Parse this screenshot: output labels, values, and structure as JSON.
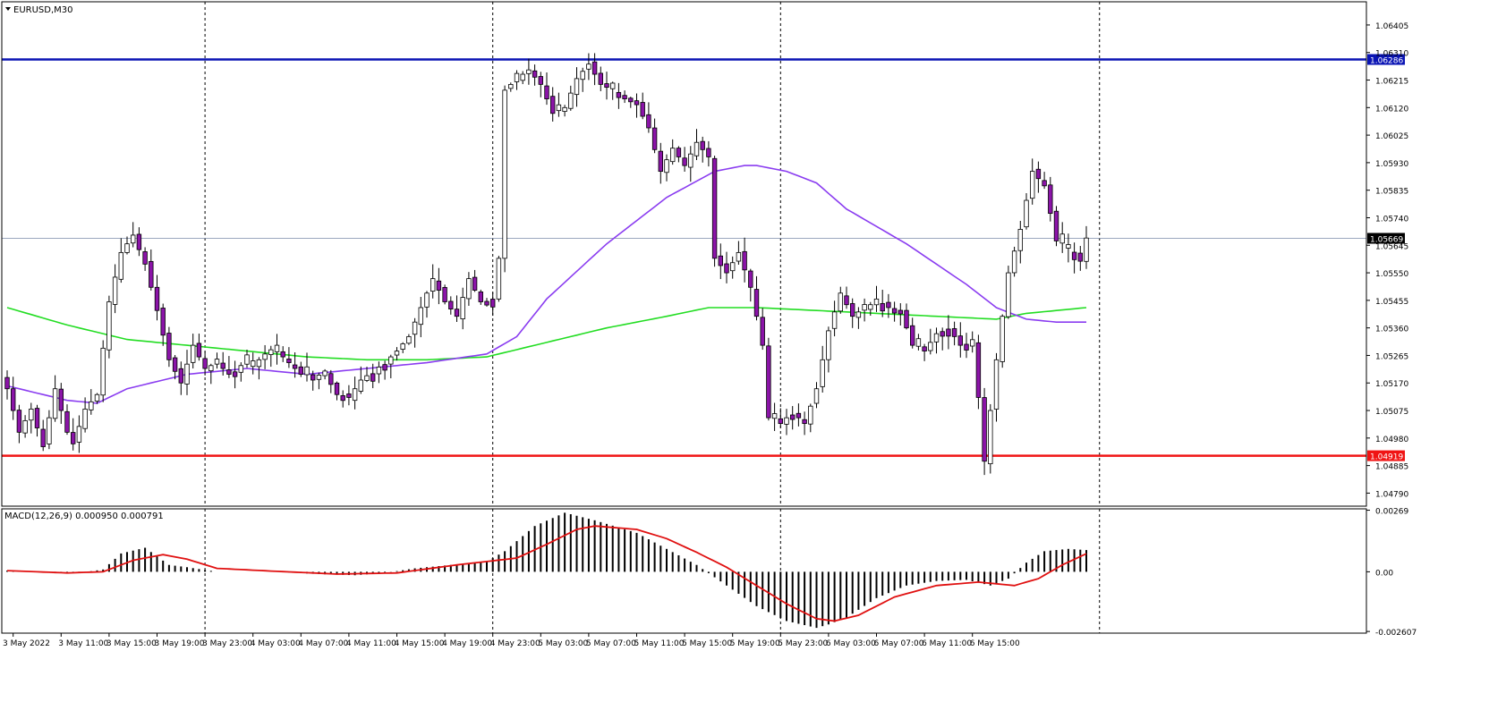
{
  "window": {
    "symbol_label": "EURUSD,M30",
    "indicator_label": "MACD(12,26,9) 0.000950 0.000791"
  },
  "colors": {
    "background": "#ffffff",
    "bull_body": "#ffffff",
    "bear_body": "#8b14a8",
    "wick": "#000000",
    "ma_fast": "#8a3cf0",
    "ma_slow": "#22dd22",
    "resistance_line": "#0a14b4",
    "support_line": "#f01414",
    "current_price_line": "#7a8aa8",
    "macd_hist": "#000000",
    "macd_signal": "#e01010"
  },
  "chart_data": [
    {
      "type": "candlestick",
      "symbol": "EURUSD",
      "timeframe": "M30",
      "y_range": [
        1.04745,
        1.06485
      ],
      "y_ticks": [
        "1.06405",
        "1.06310",
        "1.06215",
        "1.06120",
        "1.06025",
        "1.05930",
        "1.05835",
        "1.05740",
        "1.05645",
        "1.05550",
        "1.05455",
        "1.05360",
        "1.05265",
        "1.05170",
        "1.05075",
        "1.04980",
        "1.04885",
        "1.04790"
      ],
      "x_ticks": [
        "3 May 2022",
        "3 May 11:00",
        "3 May 15:00",
        "3 May 19:00",
        "3 May 23:00",
        "4 May 03:00",
        "4 May 07:00",
        "4 May 11:00",
        "4 May 15:00",
        "4 May 19:00",
        "4 May 23:00",
        "5 May 03:00",
        "5 May 07:00",
        "5 May 11:00",
        "5 May 15:00",
        "5 May 19:00",
        "5 May 23:00",
        "6 May 03:00",
        "6 May 07:00",
        "6 May 11:00",
        "6 May 15:00"
      ],
      "period_separators": [
        "3 May 23:00",
        "4 May 23:00",
        "5 May 23:00"
      ],
      "horizontal_levels": [
        {
          "label": "1.06286",
          "value": 1.06286,
          "color": "#0a14b4"
        },
        {
          "label": "1.04919",
          "value": 1.04919,
          "color": "#f01414"
        }
      ],
      "current_price": {
        "label": "1.05669",
        "value": 1.05669
      },
      "anchors": [
        [
          0,
          1.0515
        ],
        [
          2,
          1.05
        ],
        [
          4,
          1.0508
        ],
        [
          6,
          1.0495
        ],
        [
          8,
          1.0515
        ],
        [
          10,
          1.05
        ],
        [
          11,
          1.0496
        ],
        [
          13,
          1.0508
        ],
        [
          15,
          1.0513
        ],
        [
          17,
          1.0545
        ],
        [
          19,
          1.0562
        ],
        [
          21,
          1.0568
        ],
        [
          23,
          1.0558
        ],
        [
          25,
          1.0542
        ],
        [
          27,
          1.0525
        ],
        [
          29,
          1.0517
        ],
        [
          31,
          1.053
        ],
        [
          33,
          1.0522
        ],
        [
          35,
          1.0524
        ],
        [
          37,
          1.052
        ],
        [
          39,
          1.0523
        ],
        [
          41,
          1.0523
        ],
        [
          43,
          1.0527
        ],
        [
          45,
          1.0528
        ],
        [
          47,
          1.0524
        ],
        [
          49,
          1.052
        ],
        [
          51,
          1.0518
        ],
        [
          53,
          1.052
        ],
        [
          55,
          1.0513
        ],
        [
          57,
          1.0512
        ],
        [
          59,
          1.0518
        ],
        [
          61,
          1.0521
        ],
        [
          63,
          1.0524
        ],
        [
          65,
          1.0528
        ],
        [
          67,
          1.0533
        ],
        [
          69,
          1.0543
        ],
        [
          71,
          1.0553
        ],
        [
          73,
          1.0545
        ],
        [
          75,
          1.054
        ],
        [
          77,
          1.0553
        ],
        [
          79,
          1.0545
        ],
        [
          81,
          1.0545
        ],
        [
          82,
          1.056
        ],
        [
          83,
          1.0618
        ],
        [
          85,
          1.0622
        ],
        [
          87,
          1.0625
        ],
        [
          89,
          1.062
        ],
        [
          91,
          1.061
        ],
        [
          93,
          1.0612
        ],
        [
          95,
          1.0622
        ],
        [
          97,
          1.0627
        ],
        [
          99,
          1.062
        ],
        [
          101,
          1.0618
        ],
        [
          103,
          1.0615
        ],
        [
          105,
          1.0613
        ],
        [
          107,
          1.0605
        ],
        [
          109,
          1.059
        ],
        [
          111,
          1.0598
        ],
        [
          113,
          1.0592
        ],
        [
          115,
          1.06
        ],
        [
          117,
          1.0595
        ],
        [
          118,
          1.056
        ],
        [
          120,
          1.0555
        ],
        [
          122,
          1.0562
        ],
        [
          124,
          1.055
        ],
        [
          126,
          1.053
        ],
        [
          127,
          1.0505
        ],
        [
          129,
          1.0503
        ],
        [
          131,
          1.0507
        ],
        [
          133,
          1.0503
        ],
        [
          135,
          1.0515
        ],
        [
          137,
          1.0535
        ],
        [
          139,
          1.0548
        ],
        [
          141,
          1.054
        ],
        [
          143,
          1.0543
        ],
        [
          145,
          1.0545
        ],
        [
          147,
          1.0543
        ],
        [
          149,
          1.0542
        ],
        [
          151,
          1.053
        ],
        [
          153,
          1.0528
        ],
        [
          155,
          1.0534
        ],
        [
          157,
          1.0536
        ],
        [
          159,
          1.053
        ],
        [
          161,
          1.053
        ],
        [
          162,
          1.0512
        ],
        [
          163,
          1.049
        ],
        [
          165,
          1.0525
        ],
        [
          167,
          1.0555
        ],
        [
          169,
          1.057
        ],
        [
          171,
          1.059
        ],
        [
          173,
          1.0585
        ],
        [
          175,
          1.0566
        ],
        [
          177,
          1.0563
        ],
        [
          179,
          1.0559
        ],
        [
          180,
          1.0567
        ]
      ],
      "ma_slow": [
        [
          0,
          1.0543
        ],
        [
          10,
          1.0537
        ],
        [
          20,
          1.0532
        ],
        [
          30,
          1.053
        ],
        [
          40,
          1.0528
        ],
        [
          50,
          1.0526
        ],
        [
          60,
          1.0525
        ],
        [
          70,
          1.0525
        ],
        [
          80,
          1.0526
        ],
        [
          90,
          1.0531
        ],
        [
          100,
          1.0536
        ],
        [
          110,
          1.054
        ],
        [
          117,
          1.0543
        ],
        [
          125,
          1.0543
        ],
        [
          135,
          1.0542
        ],
        [
          145,
          1.0541
        ],
        [
          155,
          1.054
        ],
        [
          165,
          1.0539
        ],
        [
          170,
          1.0541
        ],
        [
          180,
          1.0543
        ]
      ],
      "ma_fast": [
        [
          0,
          1.0516
        ],
        [
          10,
          1.0511
        ],
        [
          15,
          1.051
        ],
        [
          20,
          1.0515
        ],
        [
          30,
          1.052
        ],
        [
          40,
          1.0522
        ],
        [
          50,
          1.052
        ],
        [
          60,
          1.0522
        ],
        [
          70,
          1.0524
        ],
        [
          80,
          1.0527
        ],
        [
          85,
          1.0533
        ],
        [
          90,
          1.0546
        ],
        [
          100,
          1.0565
        ],
        [
          110,
          1.0581
        ],
        [
          118,
          1.059
        ],
        [
          123,
          1.0592
        ],
        [
          125,
          1.0592
        ],
        [
          130,
          1.059
        ],
        [
          135,
          1.0586
        ],
        [
          140,
          1.0577
        ],
        [
          150,
          1.0565
        ],
        [
          160,
          1.0551
        ],
        [
          165,
          1.0543
        ],
        [
          170,
          1.0539
        ],
        [
          175,
          1.0538
        ],
        [
          180,
          1.0538
        ]
      ]
    },
    {
      "type": "macd",
      "params": "12,26,9",
      "y_range": [
        -0.00268,
        0.00275
      ],
      "y_ticks": [
        "0.00269",
        "0.00",
        "-0.002607"
      ],
      "hist_anchors": [
        [
          0,
          5e-05
        ],
        [
          8,
          -5e-05
        ],
        [
          12,
          -5e-05
        ],
        [
          16,
          0.0001
        ],
        [
          19,
          0.0008
        ],
        [
          23,
          0.00105
        ],
        [
          27,
          0.0003
        ],
        [
          30,
          0.0002
        ],
        [
          35,
          0.0
        ],
        [
          45,
          0.0
        ],
        [
          52,
          -0.0001
        ],
        [
          58,
          -0.00015
        ],
        [
          63,
          -5e-05
        ],
        [
          68,
          0.00015
        ],
        [
          74,
          0.0003
        ],
        [
          80,
          0.00045
        ],
        [
          83,
          0.0009
        ],
        [
          88,
          0.002
        ],
        [
          93,
          0.00258
        ],
        [
          98,
          0.00225
        ],
        [
          105,
          0.0017
        ],
        [
          110,
          0.001
        ],
        [
          115,
          0.0003
        ],
        [
          120,
          -0.0006
        ],
        [
          125,
          -0.0015
        ],
        [
          130,
          -0.00215
        ],
        [
          135,
          -0.00245
        ],
        [
          137,
          -0.0023
        ],
        [
          140,
          -0.002
        ],
        [
          145,
          -0.00115
        ],
        [
          150,
          -0.0006
        ],
        [
          155,
          -0.0004
        ],
        [
          160,
          -0.00035
        ],
        [
          164,
          -0.0006
        ],
        [
          167,
          -0.0003
        ],
        [
          170,
          0.0004
        ],
        [
          173,
          0.0009
        ],
        [
          177,
          0.001
        ],
        [
          180,
          0.00095
        ]
      ],
      "signal_anchors": [
        [
          0,
          5e-05
        ],
        [
          10,
          -5e-05
        ],
        [
          16,
          0.0
        ],
        [
          21,
          0.0005
        ],
        [
          26,
          0.00075
        ],
        [
          30,
          0.00055
        ],
        [
          35,
          0.00015
        ],
        [
          45,
          2e-05
        ],
        [
          55,
          -0.0001
        ],
        [
          65,
          -5e-05
        ],
        [
          75,
          0.0003
        ],
        [
          85,
          0.0006
        ],
        [
          90,
          0.0012
        ],
        [
          95,
          0.00185
        ],
        [
          98,
          0.002
        ],
        [
          105,
          0.00185
        ],
        [
          110,
          0.00145
        ],
        [
          115,
          0.00085
        ],
        [
          120,
          0.0002
        ],
        [
          125,
          -0.0006
        ],
        [
          130,
          -0.0014
        ],
        [
          135,
          -0.00205
        ],
        [
          138,
          -0.00215
        ],
        [
          142,
          -0.0019
        ],
        [
          148,
          -0.0011
        ],
        [
          155,
          -0.0006
        ],
        [
          162,
          -0.00045
        ],
        [
          168,
          -0.0006
        ],
        [
          172,
          -0.0003
        ],
        [
          176,
          0.0003
        ],
        [
          180,
          0.00079
        ]
      ]
    }
  ]
}
